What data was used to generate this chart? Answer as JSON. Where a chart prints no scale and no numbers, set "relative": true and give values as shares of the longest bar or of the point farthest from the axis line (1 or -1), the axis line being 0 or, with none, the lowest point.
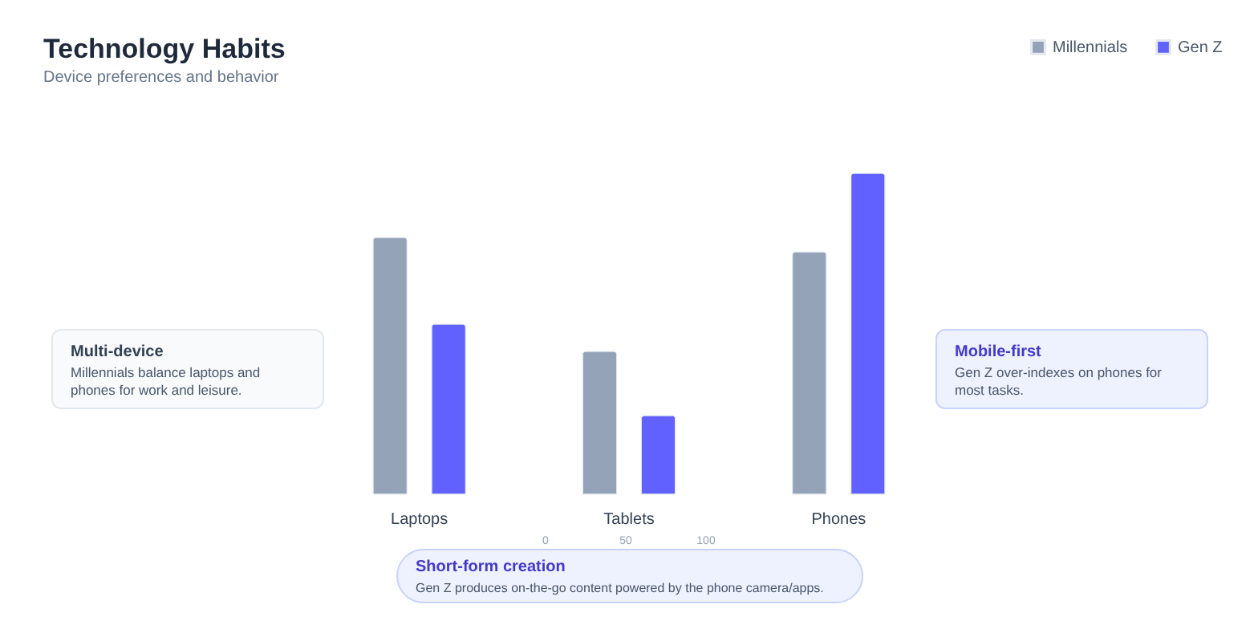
{
  "chart_data": {
    "type": "bar",
    "title": "Technology Habits",
    "subtitle": "Device preferences and behavior",
    "categories": [
      "Laptops",
      "Tablets",
      "Phones"
    ],
    "series": [
      {
        "name": "Millennials",
        "color": "#94a3b8",
        "values": [
          0.8,
          0.445,
          0.755
        ]
      },
      {
        "name": "Gen Z",
        "color": "#6161ff",
        "values": [
          0.53,
          0.245,
          1
        ]
      }
    ],
    "relative": true,
    "legend": "top right",
    "annotations": [
      "Multi-device",
      "Millennials balance laptops and phones for work and leisure.",
      "Mobile-first",
      "Gen Z over-indexes on phones for most tasks.",
      "Short-form creation",
      "Gen Z produces on-the-go content powered by the phone camera/apps.",
      "0",
      "50",
      "100"
    ]
  }
}
